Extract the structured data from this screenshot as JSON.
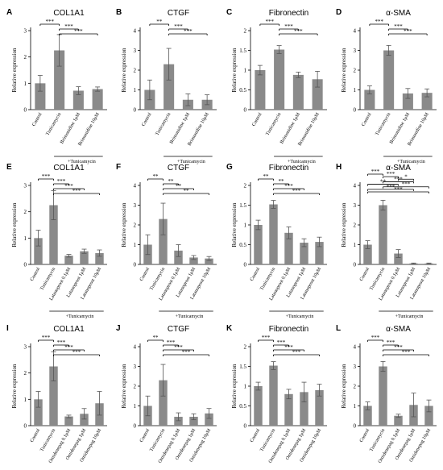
{
  "figure": {
    "treatment_label": "+Tunicamycin",
    "ylabel": "Relative expression",
    "rows": [
      {
        "drug": "Brimonidine",
        "categories": [
          "Control",
          "Tunicamycin",
          "Brimonidine 1μM",
          "Brimonidine 10μM"
        ]
      },
      {
        "drug": "Latanoprost",
        "categories": [
          "Control",
          "Tunicamycin",
          "Latanoprost 0.1μM",
          "Latanoprost 1μM",
          "Latanoprost 10μM"
        ]
      },
      {
        "drug": "Omidenepag",
        "categories": [
          "Control",
          "Tunicamycin",
          "Omidenepag 0.1μM",
          "Omidenepag 1μM",
          "Omidenepag 10μM"
        ]
      }
    ]
  },
  "chart_data": [
    {
      "panel": "A",
      "type": "bar",
      "title": "COL1A1",
      "ylabel": "Relative expression",
      "ylim": [
        0,
        3
      ],
      "yticks": [
        0,
        1,
        2,
        3
      ],
      "categories": [
        "Control",
        "Tunicamycin",
        "Brimonidine 1μM",
        "Brimonidine 10μM"
      ],
      "values": [
        1.0,
        2.25,
        0.72,
        0.78
      ],
      "errors": [
        0.3,
        0.6,
        0.15,
        0.08
      ],
      "group_label": "+Tunicamycin",
      "significance": [
        {
          "from": 0,
          "to": 1,
          "label": "***"
        },
        {
          "from": 1,
          "to": 2,
          "label": "***"
        },
        {
          "from": 1,
          "to": 3,
          "label": "***"
        }
      ]
    },
    {
      "panel": "B",
      "type": "bar",
      "title": "CTGF",
      "ylabel": "Relative expression",
      "ylim": [
        0,
        4
      ],
      "yticks": [
        0,
        1,
        2,
        3,
        4
      ],
      "categories": [
        "Control",
        "Tunicamycin",
        "Brimonidine 1μM",
        "Brimonidine 10μM"
      ],
      "values": [
        1.0,
        2.3,
        0.5,
        0.5
      ],
      "errors": [
        0.5,
        0.8,
        0.3,
        0.25
      ],
      "group_label": "+Tunicamycin",
      "significance": [
        {
          "from": 0,
          "to": 1,
          "label": "**"
        },
        {
          "from": 1,
          "to": 2,
          "label": "***"
        },
        {
          "from": 1,
          "to": 3,
          "label": "***"
        }
      ]
    },
    {
      "panel": "C",
      "type": "bar",
      "title": "Fibronectin",
      "ylabel": "Relative expression",
      "ylim": [
        0,
        2
      ],
      "yticks": [
        0,
        0.5,
        1,
        1.5,
        2
      ],
      "categories": [
        "Control",
        "Tunicamycin",
        "Brimonidine 1μM",
        "Brimonidine 10μM"
      ],
      "values": [
        1.0,
        1.52,
        0.88,
        0.77
      ],
      "errors": [
        0.12,
        0.1,
        0.07,
        0.2
      ],
      "group_label": "+Tunicamycin",
      "significance": [
        {
          "from": 0,
          "to": 1,
          "label": "***"
        },
        {
          "from": 1,
          "to": 2,
          "label": "***"
        },
        {
          "from": 1,
          "to": 3,
          "label": "***"
        }
      ]
    },
    {
      "panel": "D",
      "type": "bar",
      "title": "α-SMA",
      "ylabel": "Relative expression",
      "ylim": [
        0,
        4
      ],
      "yticks": [
        0,
        1,
        2,
        3,
        4
      ],
      "categories": [
        "Control",
        "Tunicamycin",
        "Brimonidine 1μM",
        "Brimonidine 10μM"
      ],
      "values": [
        1.0,
        3.0,
        0.82,
        0.85
      ],
      "errors": [
        0.2,
        0.25,
        0.25,
        0.2
      ],
      "group_label": "+Tunicamycin",
      "significance": [
        {
          "from": 0,
          "to": 1,
          "label": "***"
        },
        {
          "from": 1,
          "to": 2,
          "label": "***"
        },
        {
          "from": 1,
          "to": 3,
          "label": "***"
        }
      ]
    },
    {
      "panel": "E",
      "type": "bar",
      "title": "COL1A1",
      "ylabel": "Relative expression",
      "ylim": [
        0,
        3
      ],
      "yticks": [
        0,
        1,
        2,
        3
      ],
      "categories": [
        "Control",
        "Tunicamycin",
        "Latanoprost 0.1μM",
        "Latanoprost 1μM",
        "Latanoprost 10μM"
      ],
      "values": [
        1.0,
        2.25,
        0.33,
        0.5,
        0.43
      ],
      "errors": [
        0.3,
        0.55,
        0.05,
        0.08,
        0.12
      ],
      "group_label": "+Tunicamycin",
      "significance": [
        {
          "from": 0,
          "to": 1,
          "label": "***"
        },
        {
          "from": 1,
          "to": 2,
          "label": "***"
        },
        {
          "from": 1,
          "to": 3,
          "label": "***"
        },
        {
          "from": 1,
          "to": 4,
          "label": "***"
        }
      ]
    },
    {
      "panel": "F",
      "type": "bar",
      "title": "CTGF",
      "ylabel": "Relative expression",
      "ylim": [
        0,
        4
      ],
      "yticks": [
        0,
        1,
        2,
        3,
        4
      ],
      "categories": [
        "Control",
        "Tunicamycin",
        "Latanoprost 0.1μM",
        "Latanoprost 1μM",
        "Latanoprost 10μM"
      ],
      "values": [
        1.0,
        2.3,
        0.7,
        0.35,
        0.3
      ],
      "errors": [
        0.5,
        0.8,
        0.3,
        0.1,
        0.1
      ],
      "group_label": "+Tunicamycin",
      "significance": [
        {
          "from": 0,
          "to": 1,
          "label": "**"
        },
        {
          "from": 1,
          "to": 2,
          "label": "**"
        },
        {
          "from": 1,
          "to": 3,
          "label": "**"
        },
        {
          "from": 1,
          "to": 4,
          "label": "**"
        }
      ]
    },
    {
      "panel": "G",
      "type": "bar",
      "title": "Fibronectin",
      "ylabel": "Relative expression",
      "ylim": [
        0,
        2
      ],
      "yticks": [
        0,
        0.5,
        1,
        1.5,
        2
      ],
      "categories": [
        "Control",
        "Tunicamycin",
        "Latanoprost 0.1μM",
        "Latanoprost 1μM",
        "Latanoprost 10μM"
      ],
      "values": [
        1.0,
        1.52,
        0.8,
        0.55,
        0.57
      ],
      "errors": [
        0.12,
        0.1,
        0.15,
        0.1,
        0.12
      ],
      "group_label": "+Tunicamycin",
      "significance": [
        {
          "from": 0,
          "to": 1,
          "label": "**"
        },
        {
          "from": 1,
          "to": 2,
          "label": "**"
        },
        {
          "from": 1,
          "to": 3,
          "label": "***"
        },
        {
          "from": 1,
          "to": 4,
          "label": "***"
        }
      ]
    },
    {
      "panel": "H",
      "type": "bar",
      "title": "α-SMA",
      "ylabel": "Relative expression",
      "ylim": [
        0,
        4
      ],
      "yticks": [
        0,
        1,
        2,
        3,
        4
      ],
      "categories": [
        "Control",
        "Tunicamycin",
        "Latanoprost 0.1μM",
        "Latanoprost 1μM",
        "Latanoprost 10μM"
      ],
      "values": [
        1.0,
        3.0,
        0.55,
        0.05,
        0.05
      ],
      "errors": [
        0.2,
        0.25,
        0.2,
        0.02,
        0.02
      ],
      "group_label": "+Tunicamycin",
      "significance": [
        {
          "from": 0,
          "to": 1,
          "label": "***"
        },
        {
          "from": 1,
          "to": 2,
          "label": "***"
        },
        {
          "from": 2,
          "to": 3,
          "label": "*"
        },
        {
          "from": 1,
          "to": 3,
          "label": "***"
        },
        {
          "from": 0,
          "to": 2,
          "label": "**"
        },
        {
          "from": 1,
          "to": 4,
          "label": "***"
        },
        {
          "from": 0,
          "to": 3,
          "label": "***"
        },
        {
          "from": 0,
          "to": 4,
          "label": "***"
        }
      ]
    },
    {
      "panel": "I",
      "type": "bar",
      "title": "COL1A1",
      "ylabel": "Relative expression",
      "ylim": [
        0,
        3
      ],
      "yticks": [
        0,
        1,
        2,
        3
      ],
      "categories": [
        "Control",
        "Tunicamycin",
        "Omidenepag 0.1μM",
        "Omidenepag 1μM",
        "Omidenepag 10μM"
      ],
      "values": [
        1.0,
        2.25,
        0.35,
        0.45,
        0.85
      ],
      "errors": [
        0.3,
        0.55,
        0.05,
        0.2,
        0.45
      ],
      "group_label": "+Tunicamycin",
      "significance": [
        {
          "from": 0,
          "to": 1,
          "label": "***"
        },
        {
          "from": 1,
          "to": 2,
          "label": "***"
        },
        {
          "from": 1,
          "to": 3,
          "label": "***"
        },
        {
          "from": 1,
          "to": 4,
          "label": "***"
        }
      ]
    },
    {
      "panel": "J",
      "type": "bar",
      "title": "CTGF",
      "ylabel": "Relative expression",
      "ylim": [
        0,
        4
      ],
      "yticks": [
        0,
        1,
        2,
        3,
        4
      ],
      "categories": [
        "Control",
        "Tunicamycin",
        "Omidenepag 0.1μM",
        "Omidenepag 1μM",
        "Omidenepag 10μM"
      ],
      "values": [
        1.0,
        2.3,
        0.45,
        0.45,
        0.62
      ],
      "errors": [
        0.5,
        0.8,
        0.2,
        0.15,
        0.25
      ],
      "group_label": "+Tunicamycin",
      "significance": [
        {
          "from": 0,
          "to": 1,
          "label": "**"
        },
        {
          "from": 1,
          "to": 2,
          "label": "***"
        },
        {
          "from": 1,
          "to": 3,
          "label": "***"
        },
        {
          "from": 1,
          "to": 4,
          "label": "***"
        }
      ]
    },
    {
      "panel": "K",
      "type": "bar",
      "title": "Fibronectin",
      "ylabel": "Relative expression",
      "ylim": [
        0,
        2
      ],
      "yticks": [
        0,
        0.5,
        1,
        1.5,
        2
      ],
      "categories": [
        "Control",
        "Tunicamycin",
        "Omidenepag 0.1μM",
        "Omidenepag 1μM",
        "Omidenepag 10μM"
      ],
      "values": [
        1.0,
        1.52,
        0.8,
        0.85,
        0.9
      ],
      "errors": [
        0.1,
        0.1,
        0.12,
        0.25,
        0.15
      ],
      "group_label": "+Tunicamycin",
      "significance": [
        {
          "from": 0,
          "to": 1,
          "label": "***"
        },
        {
          "from": 1,
          "to": 2,
          "label": "***"
        },
        {
          "from": 1,
          "to": 3,
          "label": "***"
        },
        {
          "from": 1,
          "to": 4,
          "label": "***"
        }
      ]
    },
    {
      "panel": "L",
      "type": "bar",
      "title": "α-SMA",
      "ylabel": "Relative expression",
      "ylim": [
        0,
        4
      ],
      "yticks": [
        0,
        1,
        2,
        3,
        4
      ],
      "categories": [
        "Control",
        "Tunicamycin",
        "Omidenepag 0.1μM",
        "Omidenepag 1μM",
        "Omidenepag 10μM"
      ],
      "values": [
        1.0,
        3.0,
        0.5,
        1.05,
        1.0
      ],
      "errors": [
        0.2,
        0.25,
        0.08,
        0.6,
        0.3
      ],
      "group_label": "+Tunicamycin",
      "significance": [
        {
          "from": 0,
          "to": 1,
          "label": "***"
        },
        {
          "from": 1,
          "to": 2,
          "label": "***"
        },
        {
          "from": 1,
          "to": 3,
          "label": "***"
        },
        {
          "from": 1,
          "to": 4,
          "label": "***"
        }
      ]
    }
  ]
}
